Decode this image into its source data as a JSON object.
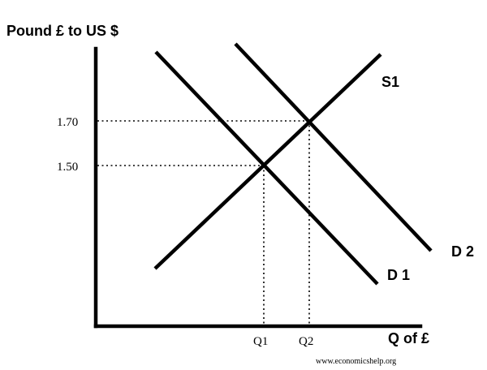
{
  "title": "Pound £ to US $",
  "x_axis_label": "Q of £",
  "y_ticks": {
    "high": "1.70",
    "low": "1.50"
  },
  "x_ticks": {
    "q1": "Q1",
    "q2": "Q2"
  },
  "curves": {
    "supply": "S1",
    "demand1": "D 1",
    "demand2": "D 2"
  },
  "credit": "www.economicshelp.org",
  "colors": {
    "line": "#000000",
    "background": "#ffffff"
  }
}
